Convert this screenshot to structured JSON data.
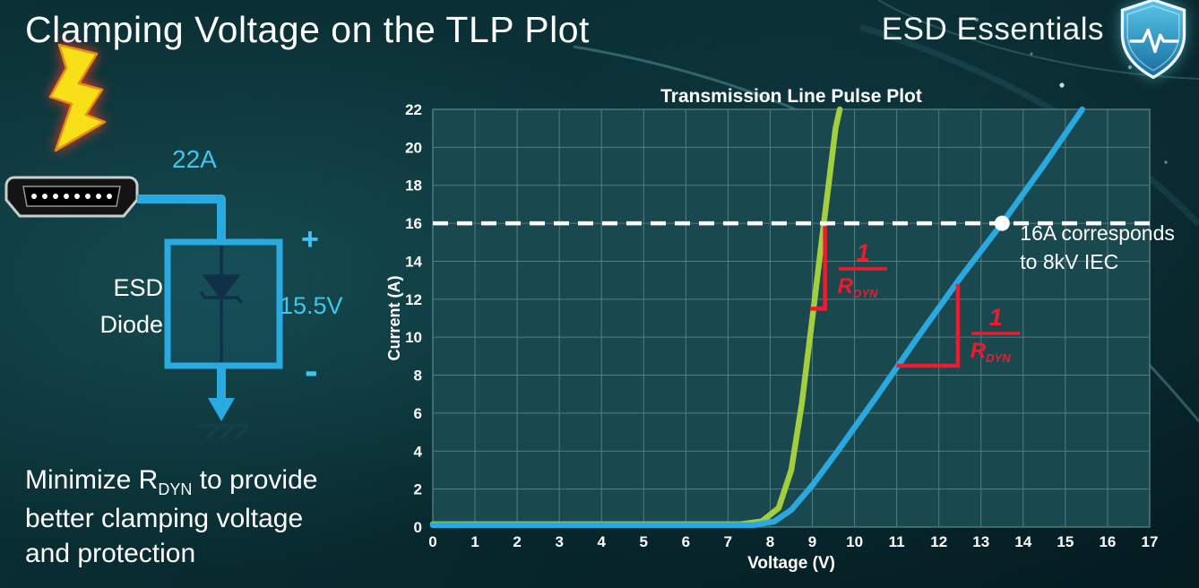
{
  "slide": {
    "title": "Clamping Voltage on the TLP Plot",
    "brand": "ESD Essentials"
  },
  "left_panel": {
    "surge_current_label": "22A",
    "device_label_line1": "ESD",
    "device_label_line2": "Diode",
    "polarity_plus": "+",
    "clamping_voltage_label": "15.5V",
    "polarity_minus": "-",
    "caption": {
      "line1_prefix": "Minimize R",
      "line1_sub": "DYN",
      "line1_suffix": " to provide",
      "line2": "better clamping voltage",
      "line3": "and protection"
    },
    "icons": {
      "lightning": "lightning-bolt-icon",
      "connector": "hdmi-connector-icon",
      "ground": "ground-symbol-icon"
    }
  },
  "chart_data": {
    "type": "line",
    "title": "Transmission Line Pulse Plot",
    "xlabel": "Voltage (V)",
    "ylabel": "Current (A)",
    "xlim": [
      0,
      17
    ],
    "ylim": [
      0,
      22
    ],
    "x_ticks": [
      0,
      1,
      2,
      3,
      4,
      5,
      6,
      7,
      8,
      9,
      10,
      11,
      12,
      13,
      14,
      15,
      16,
      17
    ],
    "y_ticks": [
      0,
      2,
      4,
      6,
      8,
      10,
      12,
      14,
      16,
      18,
      20,
      22
    ],
    "grid": true,
    "legend": "none",
    "colors": {
      "plot_bg": "#19494e",
      "grid": "#517f82",
      "annotation_red": "#ea1c2e",
      "reference_white": "#ffffff"
    },
    "series": [
      {
        "name": "green-curve",
        "color": "#a3cf3f",
        "points": [
          [
            0,
            0.15
          ],
          [
            7.3,
            0.15
          ],
          [
            7.8,
            0.3
          ],
          [
            8.2,
            1.0
          ],
          [
            8.5,
            3.0
          ],
          [
            8.75,
            6.5
          ],
          [
            9.0,
            11.0
          ],
          [
            9.3,
            16.5
          ],
          [
            9.55,
            21.0
          ],
          [
            9.65,
            22.0
          ]
        ]
      },
      {
        "name": "blue-curve",
        "color": "#2aa9e0",
        "points": [
          [
            0,
            0.1
          ],
          [
            7.6,
            0.1
          ],
          [
            8.1,
            0.3
          ],
          [
            8.5,
            0.9
          ],
          [
            9.0,
            2.2
          ],
          [
            9.6,
            4.0
          ],
          [
            10.5,
            6.8
          ],
          [
            11.5,
            10.0
          ],
          [
            12.5,
            13.1
          ],
          [
            13.5,
            16.0
          ],
          [
            14.5,
            19.1
          ],
          [
            15.4,
            22.0
          ]
        ]
      }
    ],
    "reference": {
      "y": 16,
      "marker_x": 13.5,
      "style": "dashed",
      "color": "#ffffff",
      "label_line1": "16A corresponds",
      "label_line2": "to 8kV IEC"
    },
    "slope_labels": [
      {
        "curve": "green",
        "numerator": "1",
        "denominator": "R",
        "denominator_sub": "DYN",
        "fraction_center": [
          10.2,
          13.6
        ],
        "bracket": [
          [
            8.95,
            11.5
          ],
          [
            9.3,
            11.5
          ],
          [
            9.3,
            15.85
          ]
        ]
      },
      {
        "curve": "blue",
        "numerator": "1",
        "denominator": "R",
        "denominator_sub": "DYN",
        "fraction_center": [
          13.35,
          10.2
        ],
        "bracket": [
          [
            11.0,
            8.5
          ],
          [
            12.45,
            8.5
          ],
          [
            12.45,
            12.8
          ]
        ]
      }
    ]
  }
}
